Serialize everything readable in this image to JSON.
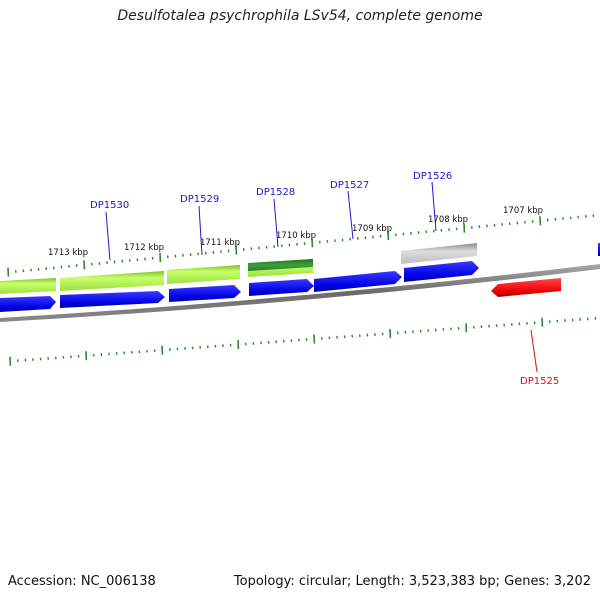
{
  "title": "Desulfotalea psychrophila LSv54, complete genome",
  "footer": {
    "accession": "Accession: NC_006138",
    "summary": "Topology: circular; Length: 3,523,383 bp; Genes: 3,202"
  },
  "colors": {
    "backbone": "#7a7a7a",
    "tick": "#2a8a2a",
    "gene_label_blue": "#1a1acc",
    "gene_label_red": "#dd1111",
    "cds_blue": "#1111ee",
    "cds_red": "#ee1111",
    "cog_lightgreen": "#aaf04a",
    "cog_darkgreen": "#2f8a2f",
    "cog_gray": "#bdbdbd"
  },
  "scale_labels": [
    "1713 kbp",
    "1712 kbp",
    "1711 kbp",
    "1710 kbp",
    "1709 kbp",
    "1708 kbp",
    "1707 kbp"
  ],
  "gene_labels": [
    {
      "text": "DP1530",
      "color": "blue"
    },
    {
      "text": "DP1529",
      "color": "blue"
    },
    {
      "text": "DP1528",
      "color": "blue"
    },
    {
      "text": "DP1527",
      "color": "blue"
    },
    {
      "text": "DP1526",
      "color": "blue"
    },
    {
      "text": "DP1525",
      "color": "red"
    }
  ]
}
